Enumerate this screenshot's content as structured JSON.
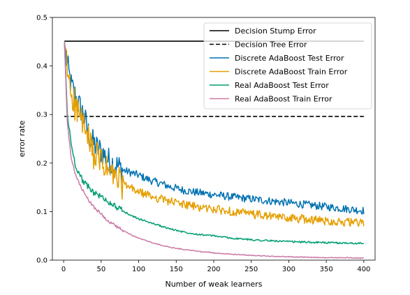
{
  "chart_data": {
    "type": "line",
    "title": "",
    "xlabel": "Number of weak learners",
    "ylabel": "error rate",
    "xlim": [
      -15,
      415
    ],
    "ylim": [
      0.0,
      0.5
    ],
    "xticks": [
      0,
      50,
      100,
      150,
      200,
      250,
      300,
      350,
      400
    ],
    "yticks": [
      0.0,
      0.1,
      0.2,
      0.3,
      0.4,
      0.5
    ],
    "legend_position": "top-right",
    "grid": false,
    "reference_lines": [
      {
        "name": "Decision Stump Error",
        "y": 0.451,
        "x_range": [
          1,
          400
        ],
        "color": "#000000",
        "style": "solid"
      },
      {
        "name": "Decision Tree Error",
        "y": 0.296,
        "x_range": [
          1,
          400
        ],
        "color": "#000000",
        "style": "dashed"
      }
    ],
    "series": [
      {
        "name": "Discrete AdaBoost Test Error",
        "color": "#0072B2",
        "noise": 0.018,
        "x": [
          1,
          5,
          10,
          15,
          20,
          25,
          30,
          35,
          40,
          45,
          50,
          55,
          60,
          65,
          70,
          75,
          80,
          90,
          100,
          110,
          120,
          130,
          140,
          150,
          160,
          175,
          200,
          225,
          250,
          275,
          300,
          325,
          350,
          375,
          400
        ],
        "y": [
          0.45,
          0.4,
          0.36,
          0.34,
          0.32,
          0.305,
          0.28,
          0.25,
          0.24,
          0.23,
          0.225,
          0.215,
          0.205,
          0.2,
          0.195,
          0.19,
          0.185,
          0.18,
          0.175,
          0.168,
          0.162,
          0.158,
          0.152,
          0.148,
          0.144,
          0.14,
          0.135,
          0.13,
          0.126,
          0.122,
          0.118,
          0.114,
          0.11,
          0.106,
          0.102
        ]
      },
      {
        "name": "Discrete AdaBoost Train Error",
        "color": "#E69F00",
        "noise": 0.02,
        "x": [
          1,
          5,
          10,
          15,
          20,
          25,
          30,
          35,
          40,
          45,
          50,
          55,
          60,
          65,
          70,
          75,
          80,
          90,
          100,
          110,
          120,
          130,
          140,
          150,
          160,
          175,
          200,
          225,
          250,
          275,
          300,
          325,
          350,
          375,
          400
        ],
        "y": [
          0.45,
          0.39,
          0.35,
          0.32,
          0.3,
          0.285,
          0.26,
          0.235,
          0.22,
          0.21,
          0.205,
          0.19,
          0.18,
          0.175,
          0.168,
          0.16,
          0.155,
          0.148,
          0.14,
          0.135,
          0.13,
          0.126,
          0.122,
          0.118,
          0.115,
          0.11,
          0.105,
          0.1,
          0.095,
          0.09,
          0.087,
          0.084,
          0.081,
          0.078,
          0.076
        ]
      },
      {
        "name": "Real AdaBoost Test Error",
        "color": "#009E73",
        "noise": 0.004,
        "x": [
          1,
          5,
          10,
          15,
          20,
          25,
          30,
          40,
          50,
          60,
          70,
          80,
          90,
          100,
          120,
          140,
          160,
          180,
          200,
          225,
          250,
          275,
          300,
          325,
          350,
          375,
          400
        ],
        "y": [
          0.45,
          0.3,
          0.24,
          0.2,
          0.18,
          0.165,
          0.155,
          0.14,
          0.13,
          0.12,
          0.11,
          0.1,
          0.092,
          0.085,
          0.075,
          0.065,
          0.058,
          0.053,
          0.05,
          0.045,
          0.042,
          0.04,
          0.038,
          0.037,
          0.036,
          0.035,
          0.035
        ]
      },
      {
        "name": "Real AdaBoost Train Error",
        "color": "#CC79A7",
        "noise": 0.002,
        "x": [
          1,
          5,
          10,
          15,
          20,
          25,
          30,
          40,
          50,
          60,
          70,
          80,
          90,
          100,
          120,
          140,
          160,
          180,
          200,
          225,
          250,
          275,
          300,
          325,
          350,
          375,
          400
        ],
        "y": [
          0.45,
          0.28,
          0.21,
          0.18,
          0.16,
          0.145,
          0.13,
          0.11,
          0.095,
          0.08,
          0.07,
          0.06,
          0.052,
          0.045,
          0.035,
          0.027,
          0.022,
          0.018,
          0.015,
          0.012,
          0.01,
          0.008,
          0.007,
          0.006,
          0.005,
          0.005,
          0.004
        ]
      }
    ]
  }
}
